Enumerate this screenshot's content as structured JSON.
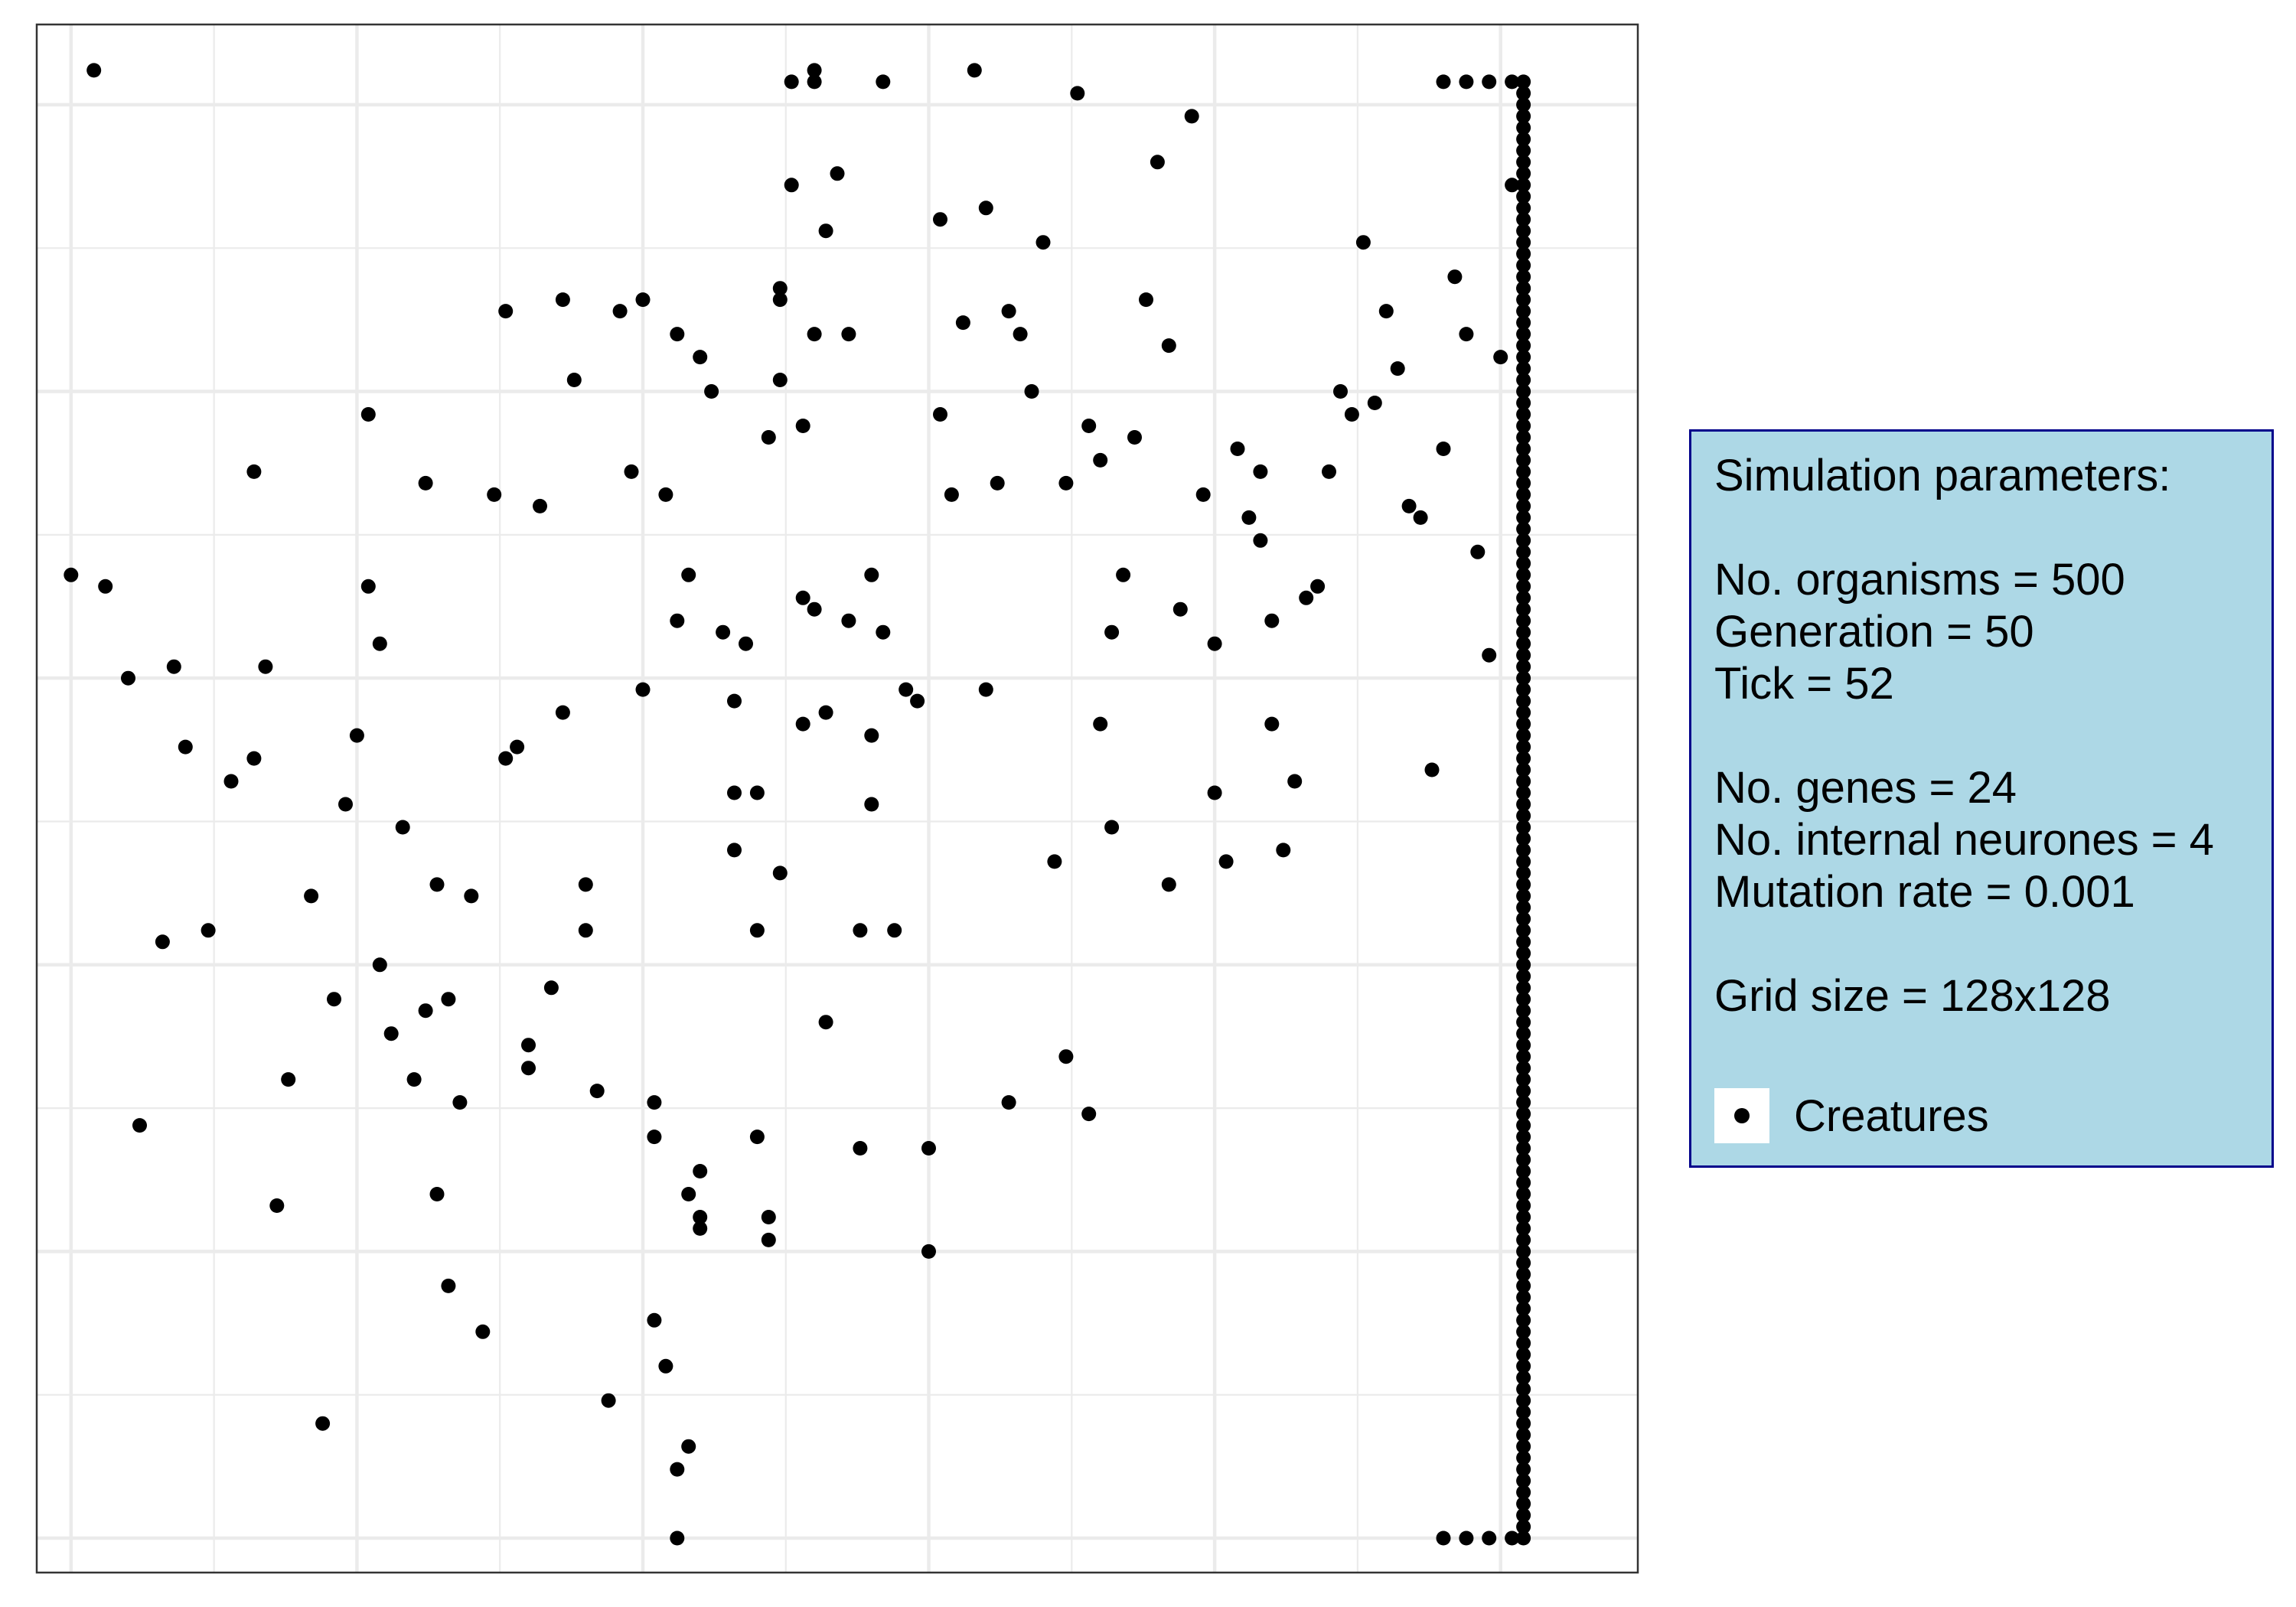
{
  "chart_data": {
    "type": "scatter",
    "title": "",
    "xlabel": "",
    "ylabel": "",
    "xlim": [
      -3,
      137
    ],
    "ylim": [
      -3,
      132
    ],
    "grid": true,
    "legend_position": "right",
    "series": [
      {
        "name": "Creatures",
        "color": "#000000",
        "points": [
          [
            0,
            84
          ],
          [
            2,
            128
          ],
          [
            3,
            83
          ],
          [
            5,
            75
          ],
          [
            6,
            36
          ],
          [
            8,
            52
          ],
          [
            9,
            76
          ],
          [
            10,
            69
          ],
          [
            12,
            53
          ],
          [
            14,
            66
          ],
          [
            16,
            93
          ],
          [
            16,
            68
          ],
          [
            17,
            76
          ],
          [
            18,
            29
          ],
          [
            19,
            40
          ],
          [
            21,
            56
          ],
          [
            22,
            10
          ],
          [
            23,
            47
          ],
          [
            24,
            64
          ],
          [
            25,
            70
          ],
          [
            26,
            83
          ],
          [
            26,
            98
          ],
          [
            27,
            50
          ],
          [
            27,
            78
          ],
          [
            28,
            44
          ],
          [
            29,
            62
          ],
          [
            30,
            40
          ],
          [
            31,
            46
          ],
          [
            31,
            92
          ],
          [
            32,
            30
          ],
          [
            32,
            57
          ],
          [
            33,
            22
          ],
          [
            33,
            47
          ],
          [
            34,
            38
          ],
          [
            35,
            56
          ],
          [
            36,
            18
          ],
          [
            37,
            91
          ],
          [
            38,
            68
          ],
          [
            38,
            107
          ],
          [
            39,
            69
          ],
          [
            40,
            43
          ],
          [
            40,
            41
          ],
          [
            41,
            90
          ],
          [
            42,
            48
          ],
          [
            43,
            72
          ],
          [
            43,
            108
          ],
          [
            44,
            101
          ],
          [
            45,
            57
          ],
          [
            45,
            53
          ],
          [
            46,
            39
          ],
          [
            47,
            12
          ],
          [
            48,
            107
          ],
          [
            49,
            93
          ],
          [
            50,
            74
          ],
          [
            50,
            108
          ],
          [
            51,
            38
          ],
          [
            51,
            35
          ],
          [
            51,
            19
          ],
          [
            52,
            91
          ],
          [
            52,
            15
          ],
          [
            53,
            105
          ],
          [
            53,
            80
          ],
          [
            53,
            6
          ],
          [
            53,
            0
          ],
          [
            54,
            84
          ],
          [
            54,
            30
          ],
          [
            54,
            8
          ],
          [
            55,
            27
          ],
          [
            55,
            28
          ],
          [
            55,
            103
          ],
          [
            55,
            32
          ],
          [
            56,
            100
          ],
          [
            57,
            79
          ],
          [
            58,
            65
          ],
          [
            58,
            73
          ],
          [
            58,
            60
          ],
          [
            59,
            78
          ],
          [
            60,
            35
          ],
          [
            60,
            65
          ],
          [
            60,
            53
          ],
          [
            61,
            28
          ],
          [
            61,
            26
          ],
          [
            61,
            96
          ],
          [
            62,
            108
          ],
          [
            62,
            109
          ],
          [
            62,
            58
          ],
          [
            62,
            101
          ],
          [
            63,
            118
          ],
          [
            63,
            127
          ],
          [
            64,
            71
          ],
          [
            64,
            97
          ],
          [
            64,
            82
          ],
          [
            65,
            127
          ],
          [
            65,
            105
          ],
          [
            65,
            81
          ],
          [
            65,
            128
          ],
          [
            66,
            45
          ],
          [
            66,
            72
          ],
          [
            66,
            114
          ],
          [
            67,
            119
          ],
          [
            68,
            105
          ],
          [
            68,
            80
          ],
          [
            69,
            34
          ],
          [
            69,
            53
          ],
          [
            70,
            70
          ],
          [
            70,
            64
          ],
          [
            70,
            84
          ],
          [
            71,
            79
          ],
          [
            71,
            127
          ],
          [
            72,
            53
          ],
          [
            73,
            74
          ],
          [
            74,
            73
          ],
          [
            75,
            34
          ],
          [
            75,
            25
          ],
          [
            76,
            98
          ],
          [
            76,
            115
          ],
          [
            77,
            91
          ],
          [
            78,
            106
          ],
          [
            79,
            128
          ],
          [
            80,
            116
          ],
          [
            80,
            74
          ],
          [
            81,
            92
          ],
          [
            82,
            38
          ],
          [
            82,
            107
          ],
          [
            83,
            105
          ],
          [
            84,
            100
          ],
          [
            85,
            113
          ],
          [
            86,
            59
          ],
          [
            87,
            42
          ],
          [
            87,
            92
          ],
          [
            88,
            126
          ],
          [
            89,
            97
          ],
          [
            89,
            37
          ],
          [
            90,
            71
          ],
          [
            90,
            94
          ],
          [
            91,
            62
          ],
          [
            91,
            79
          ],
          [
            92,
            84
          ],
          [
            93,
            96
          ],
          [
            94,
            108
          ],
          [
            95,
            120
          ],
          [
            96,
            57
          ],
          [
            96,
            104
          ],
          [
            97,
            81
          ],
          [
            98,
            124
          ],
          [
            99,
            91
          ],
          [
            100,
            78
          ],
          [
            100,
            65
          ],
          [
            101,
            59
          ],
          [
            102,
            95
          ],
          [
            103,
            89
          ],
          [
            104,
            87
          ],
          [
            104,
            93
          ],
          [
            105,
            71
          ],
          [
            105,
            80
          ],
          [
            106,
            60
          ],
          [
            107,
            66
          ],
          [
            108,
            82
          ],
          [
            109,
            83
          ],
          [
            110,
            93
          ],
          [
            111,
            100
          ],
          [
            112,
            98
          ],
          [
            113,
            113
          ],
          [
            114,
            99
          ],
          [
            115,
            107
          ],
          [
            116,
            102
          ],
          [
            117,
            90
          ],
          [
            118,
            89
          ],
          [
            119,
            67
          ],
          [
            120,
            95
          ],
          [
            121,
            110
          ],
          [
            122,
            105
          ],
          [
            123,
            86
          ],
          [
            124,
            77
          ],
          [
            125,
            103
          ],
          [
            126,
            118
          ],
          [
            127,
            109
          ]
        ]
      }
    ]
  },
  "legend": {
    "heading": "Simulation parameters:",
    "organisms": "No. organisms = 500",
    "generation": "Generation = 50",
    "tick": "Tick = 52",
    "genes": "No. genes = 24",
    "neurones": "No. internal neurones = 4",
    "mutation": "Mutation rate = 0.001",
    "grid": "Grid size = 128x128",
    "key_label": "Creatures"
  }
}
